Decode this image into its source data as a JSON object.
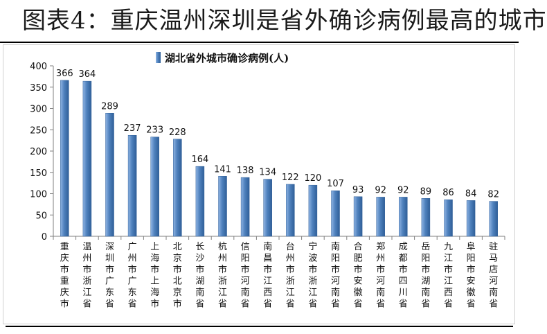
{
  "header": {
    "title": "图表4：重庆温州深圳是省外确诊病例最高的城市"
  },
  "chart_data": {
    "type": "bar",
    "categories": [
      "重庆市重庆市",
      "温州市浙江省",
      "深圳市广东省",
      "广州市广东省",
      "上海市上海市",
      "北京市北京市",
      "长沙市湖南省",
      "杭州市浙江省",
      "信阳市河南省",
      "南昌市江西省",
      "台州市浙江省",
      "宁波市浙江省",
      "南阳市河南省",
      "合肥市安徽省",
      "郑州市河南省",
      "成都市四川省",
      "岳阳市湖南省",
      "九江市江西省",
      "阜阳市安徽省",
      "驻马店河南省"
    ],
    "series": [
      {
        "name": "湖北省外城市确诊病例(人)",
        "values": [
          366,
          364,
          289,
          237,
          233,
          228,
          164,
          141,
          138,
          134,
          122,
          120,
          107,
          93,
          92,
          92,
          89,
          86,
          84,
          82
        ]
      }
    ],
    "ylim": [
      0,
      400
    ],
    "yticks": [
      0,
      50,
      100,
      150,
      200,
      250,
      300,
      350,
      400
    ],
    "grid": false,
    "legend_position": "top-center",
    "data_labels": true,
    "colors": {
      "bar": "#4f81bd",
      "bar_light": "#8fb4e3",
      "bar_dark": "#2f5f98",
      "axis": "#7f7f7f"
    }
  }
}
